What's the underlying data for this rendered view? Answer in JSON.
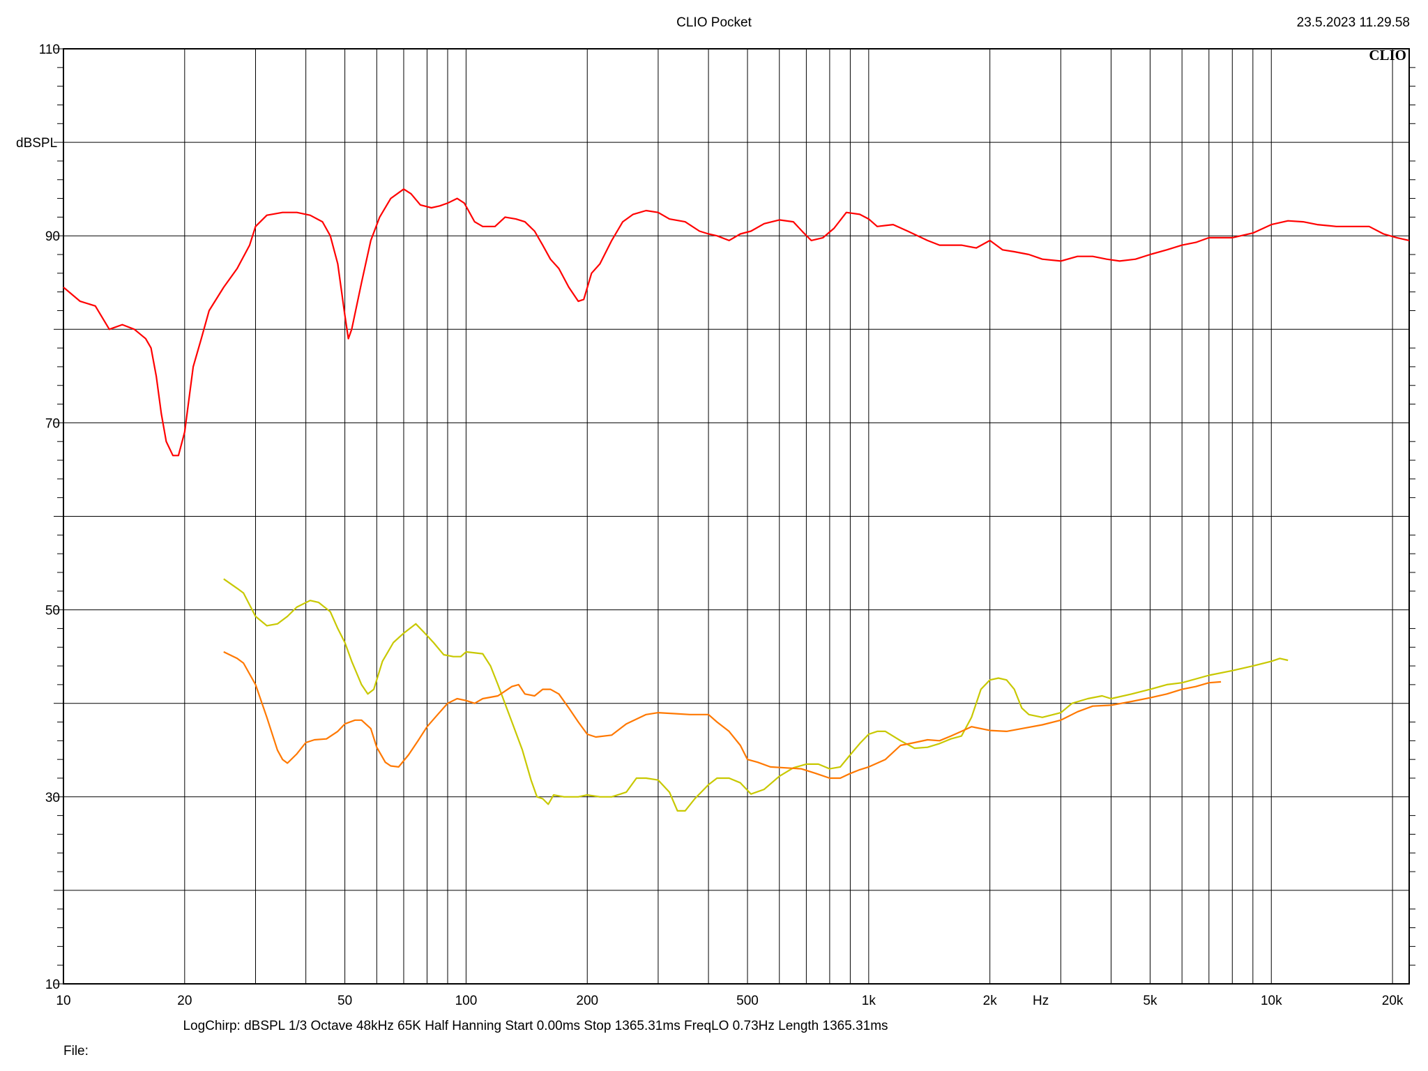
{
  "header": {
    "title": "CLIO Pocket",
    "timestamp": "23.5.2023 11.29.58"
  },
  "footer": {
    "settings": "LogChirp:  dBSPL   1/3 Octave   48kHz   65K   Half Hanning   Start 0.00ms    Stop 1365.31ms    FreqLO 0.73Hz    Length 1365.31ms",
    "file_label": "File:"
  },
  "logo": "CLIO",
  "chart_data": {
    "type": "line",
    "ylabel": "dBSPL",
    "xlabel": "Hz",
    "xscale": "log",
    "xlim": [
      10,
      22000
    ],
    "ylim": [
      10,
      110
    ],
    "grid": true,
    "x_tick_labels": [
      {
        "value": 10,
        "label": "10"
      },
      {
        "value": 20,
        "label": "20"
      },
      {
        "value": 50,
        "label": "50"
      },
      {
        "value": 100,
        "label": "100"
      },
      {
        "value": 200,
        "label": "200"
      },
      {
        "value": 500,
        "label": "500"
      },
      {
        "value": 1000,
        "label": "1k"
      },
      {
        "value": 2000,
        "label": "2k"
      },
      {
        "value": 5000,
        "label": "5k"
      },
      {
        "value": 10000,
        "label": "10k"
      },
      {
        "value": 20000,
        "label": "20k"
      }
    ],
    "y_tick_labels": [
      {
        "value": 10,
        "label": "10"
      },
      {
        "value": 30,
        "label": "30"
      },
      {
        "value": 50,
        "label": "50"
      },
      {
        "value": 70,
        "label": "70"
      },
      {
        "value": 90,
        "label": "90"
      },
      {
        "value": 110,
        "label": "110"
      }
    ],
    "series": [
      {
        "color": "#ff0000",
        "points": [
          [
            10,
            84.5
          ],
          [
            11,
            83
          ],
          [
            12,
            82.5
          ],
          [
            13,
            80
          ],
          [
            14,
            80.5
          ],
          [
            15,
            80
          ],
          [
            16,
            79
          ],
          [
            16.5,
            78
          ],
          [
            17,
            75
          ],
          [
            17.5,
            71
          ],
          [
            18,
            68
          ],
          [
            18.7,
            66.5
          ],
          [
            19.3,
            66.5
          ],
          [
            20,
            69
          ],
          [
            21,
            76
          ],
          [
            22,
            79
          ],
          [
            23,
            82
          ],
          [
            25,
            84.5
          ],
          [
            27,
            86.5
          ],
          [
            29,
            89
          ],
          [
            30,
            91
          ],
          [
            32,
            92.2
          ],
          [
            35,
            92.5
          ],
          [
            38,
            92.5
          ],
          [
            41,
            92.2
          ],
          [
            44,
            91.5
          ],
          [
            46,
            90
          ],
          [
            48,
            87
          ],
          [
            50,
            81.5
          ],
          [
            51,
            79
          ],
          [
            52,
            80
          ],
          [
            55,
            85
          ],
          [
            58,
            89.5
          ],
          [
            61,
            92
          ],
          [
            65,
            94
          ],
          [
            70,
            95
          ],
          [
            73,
            94.5
          ],
          [
            77,
            93.3
          ],
          [
            82,
            93
          ],
          [
            86,
            93.2
          ],
          [
            90,
            93.5
          ],
          [
            95,
            94
          ],
          [
            99,
            93.5
          ],
          [
            105,
            91.5
          ],
          [
            110,
            91
          ],
          [
            118,
            91
          ],
          [
            125,
            92
          ],
          [
            133,
            91.8
          ],
          [
            140,
            91.5
          ],
          [
            148,
            90.5
          ],
          [
            155,
            89
          ],
          [
            162,
            87.5
          ],
          [
            170,
            86.5
          ],
          [
            180,
            84.5
          ],
          [
            190,
            83
          ],
          [
            196,
            83.2
          ],
          [
            205,
            86
          ],
          [
            215,
            87
          ],
          [
            230,
            89.5
          ],
          [
            245,
            91.5
          ],
          [
            260,
            92.3
          ],
          [
            280,
            92.7
          ],
          [
            300,
            92.5
          ],
          [
            320,
            91.8
          ],
          [
            350,
            91.5
          ],
          [
            380,
            90.5
          ],
          [
            400,
            90.2
          ],
          [
            420,
            90
          ],
          [
            450,
            89.5
          ],
          [
            480,
            90.2
          ],
          [
            510,
            90.5
          ],
          [
            550,
            91.3
          ],
          [
            600,
            91.7
          ],
          [
            650,
            91.5
          ],
          [
            690,
            90.3
          ],
          [
            720,
            89.5
          ],
          [
            770,
            89.8
          ],
          [
            820,
            90.8
          ],
          [
            880,
            92.5
          ],
          [
            950,
            92.3
          ],
          [
            1000,
            91.8
          ],
          [
            1050,
            91
          ],
          [
            1150,
            91.2
          ],
          [
            1250,
            90.5
          ],
          [
            1400,
            89.5
          ],
          [
            1500,
            89
          ],
          [
            1700,
            89
          ],
          [
            1850,
            88.7
          ],
          [
            2000,
            89.5
          ],
          [
            2150,
            88.5
          ],
          [
            2300,
            88.3
          ],
          [
            2500,
            88
          ],
          [
            2700,
            87.5
          ],
          [
            3000,
            87.3
          ],
          [
            3300,
            87.8
          ],
          [
            3600,
            87.8
          ],
          [
            3900,
            87.5
          ],
          [
            4200,
            87.3
          ],
          [
            4600,
            87.5
          ],
          [
            5000,
            88
          ],
          [
            5500,
            88.5
          ],
          [
            6000,
            89
          ],
          [
            6500,
            89.3
          ],
          [
            7000,
            89.8
          ],
          [
            8000,
            89.8
          ],
          [
            9000,
            90.3
          ],
          [
            10000,
            91.2
          ],
          [
            11000,
            91.6
          ],
          [
            12000,
            91.5
          ],
          [
            13000,
            91.2
          ],
          [
            14500,
            91
          ],
          [
            16000,
            91
          ],
          [
            17500,
            91
          ],
          [
            19000,
            90.2
          ],
          [
            20500,
            89.8
          ],
          [
            22000,
            89.5
          ]
        ]
      },
      {
        "color": "#c8c800",
        "points": [
          [
            25,
            53.3
          ],
          [
            27,
            52.3
          ],
          [
            28,
            51.8
          ],
          [
            30,
            49.3
          ],
          [
            32,
            48.3
          ],
          [
            34,
            48.5
          ],
          [
            36,
            49.3
          ],
          [
            38,
            50.3
          ],
          [
            41,
            51
          ],
          [
            43,
            50.8
          ],
          [
            46,
            49.8
          ],
          [
            48,
            48
          ],
          [
            50,
            46.5
          ],
          [
            52,
            44.5
          ],
          [
            55,
            42
          ],
          [
            57,
            41
          ],
          [
            59,
            41.5
          ],
          [
            62,
            44.5
          ],
          [
            66,
            46.5
          ],
          [
            70,
            47.5
          ],
          [
            75,
            48.5
          ],
          [
            79,
            47.5
          ],
          [
            83,
            46.5
          ],
          [
            88,
            45.2
          ],
          [
            93,
            45
          ],
          [
            97,
            45
          ],
          [
            100,
            45.5
          ],
          [
            110,
            45.3
          ],
          [
            115,
            44
          ],
          [
            120,
            42
          ],
          [
            130,
            38
          ],
          [
            138,
            35
          ],
          [
            145,
            31.8
          ],
          [
            150,
            30
          ],
          [
            155,
            29.8
          ],
          [
            160,
            29.2
          ],
          [
            165,
            30.2
          ],
          [
            175,
            30
          ],
          [
            190,
            30
          ],
          [
            200,
            30.2
          ],
          [
            215,
            30
          ],
          [
            230,
            30
          ],
          [
            250,
            30.5
          ],
          [
            265,
            32
          ],
          [
            280,
            32
          ],
          [
            300,
            31.8
          ],
          [
            320,
            30.5
          ],
          [
            335,
            28.5
          ],
          [
            350,
            28.5
          ],
          [
            370,
            29.8
          ],
          [
            400,
            31.3
          ],
          [
            420,
            32
          ],
          [
            450,
            32
          ],
          [
            480,
            31.5
          ],
          [
            510,
            30.3
          ],
          [
            550,
            30.8
          ],
          [
            600,
            32.2
          ],
          [
            650,
            33.1
          ],
          [
            700,
            33.5
          ],
          [
            750,
            33.5
          ],
          [
            800,
            33
          ],
          [
            850,
            33.2
          ],
          [
            900,
            34.5
          ],
          [
            950,
            35.7
          ],
          [
            1000,
            36.7
          ],
          [
            1050,
            37
          ],
          [
            1100,
            37
          ],
          [
            1200,
            36
          ],
          [
            1300,
            35.2
          ],
          [
            1400,
            35.3
          ],
          [
            1500,
            35.7
          ],
          [
            1600,
            36.2
          ],
          [
            1700,
            36.5
          ],
          [
            1800,
            38.5
          ],
          [
            1900,
            41.5
          ],
          [
            2000,
            42.5
          ],
          [
            2100,
            42.7
          ],
          [
            2200,
            42.5
          ],
          [
            2300,
            41.5
          ],
          [
            2400,
            39.5
          ],
          [
            2500,
            38.8
          ],
          [
            2700,
            38.5
          ],
          [
            3000,
            39
          ],
          [
            3200,
            40
          ],
          [
            3500,
            40.5
          ],
          [
            3800,
            40.8
          ],
          [
            4000,
            40.5
          ],
          [
            4500,
            41
          ],
          [
            5000,
            41.5
          ],
          [
            5500,
            42
          ],
          [
            6000,
            42.2
          ],
          [
            7000,
            43
          ],
          [
            8000,
            43.5
          ],
          [
            9000,
            44
          ],
          [
            10000,
            44.5
          ],
          [
            10500,
            44.8
          ],
          [
            11000,
            44.6
          ]
        ]
      },
      {
        "color": "#ff7800",
        "points": [
          [
            25,
            45.5
          ],
          [
            27,
            44.8
          ],
          [
            28,
            44.3
          ],
          [
            30,
            42
          ],
          [
            32,
            38.5
          ],
          [
            34,
            35
          ],
          [
            35,
            34
          ],
          [
            36,
            33.6
          ],
          [
            38,
            34.6
          ],
          [
            40,
            35.8
          ],
          [
            42,
            36.1
          ],
          [
            45,
            36.2
          ],
          [
            48,
            37
          ],
          [
            50,
            37.8
          ],
          [
            53,
            38.2
          ],
          [
            55,
            38.2
          ],
          [
            58,
            37.3
          ],
          [
            60,
            35.3
          ],
          [
            63,
            33.7
          ],
          [
            65,
            33.3
          ],
          [
            68,
            33.2
          ],
          [
            72,
            34.5
          ],
          [
            76,
            36
          ],
          [
            80,
            37.5
          ],
          [
            85,
            38.8
          ],
          [
            90,
            40
          ],
          [
            95,
            40.5
          ],
          [
            100,
            40.3
          ],
          [
            105,
            40
          ],
          [
            110,
            40.5
          ],
          [
            120,
            40.8
          ],
          [
            130,
            41.8
          ],
          [
            135,
            42
          ],
          [
            140,
            41
          ],
          [
            148,
            40.8
          ],
          [
            155,
            41.5
          ],
          [
            162,
            41.5
          ],
          [
            170,
            41
          ],
          [
            180,
            39.5
          ],
          [
            190,
            38
          ],
          [
            200,
            36.7
          ],
          [
            210,
            36.4
          ],
          [
            230,
            36.6
          ],
          [
            250,
            37.8
          ],
          [
            280,
            38.8
          ],
          [
            300,
            39
          ],
          [
            330,
            38.9
          ],
          [
            360,
            38.8
          ],
          [
            400,
            38.8
          ],
          [
            420,
            38
          ],
          [
            450,
            37
          ],
          [
            480,
            35.5
          ],
          [
            500,
            34
          ],
          [
            530,
            33.7
          ],
          [
            570,
            33.2
          ],
          [
            620,
            33.1
          ],
          [
            680,
            33
          ],
          [
            740,
            32.5
          ],
          [
            800,
            32
          ],
          [
            850,
            32
          ],
          [
            900,
            32.5
          ],
          [
            950,
            32.9
          ],
          [
            1000,
            33.2
          ],
          [
            1100,
            34
          ],
          [
            1200,
            35.5
          ],
          [
            1300,
            35.8
          ],
          [
            1400,
            36.1
          ],
          [
            1500,
            36
          ],
          [
            1600,
            36.5
          ],
          [
            1700,
            37
          ],
          [
            1800,
            37.5
          ],
          [
            2000,
            37.1
          ],
          [
            2200,
            37
          ],
          [
            2400,
            37.3
          ],
          [
            2700,
            37.7
          ],
          [
            3000,
            38.2
          ],
          [
            3300,
            39.1
          ],
          [
            3600,
            39.7
          ],
          [
            4000,
            39.8
          ],
          [
            4500,
            40.2
          ],
          [
            5000,
            40.6
          ],
          [
            5500,
            41
          ],
          [
            6000,
            41.5
          ],
          [
            6500,
            41.8
          ],
          [
            7000,
            42.2
          ],
          [
            7500,
            42.3
          ]
        ]
      }
    ]
  }
}
